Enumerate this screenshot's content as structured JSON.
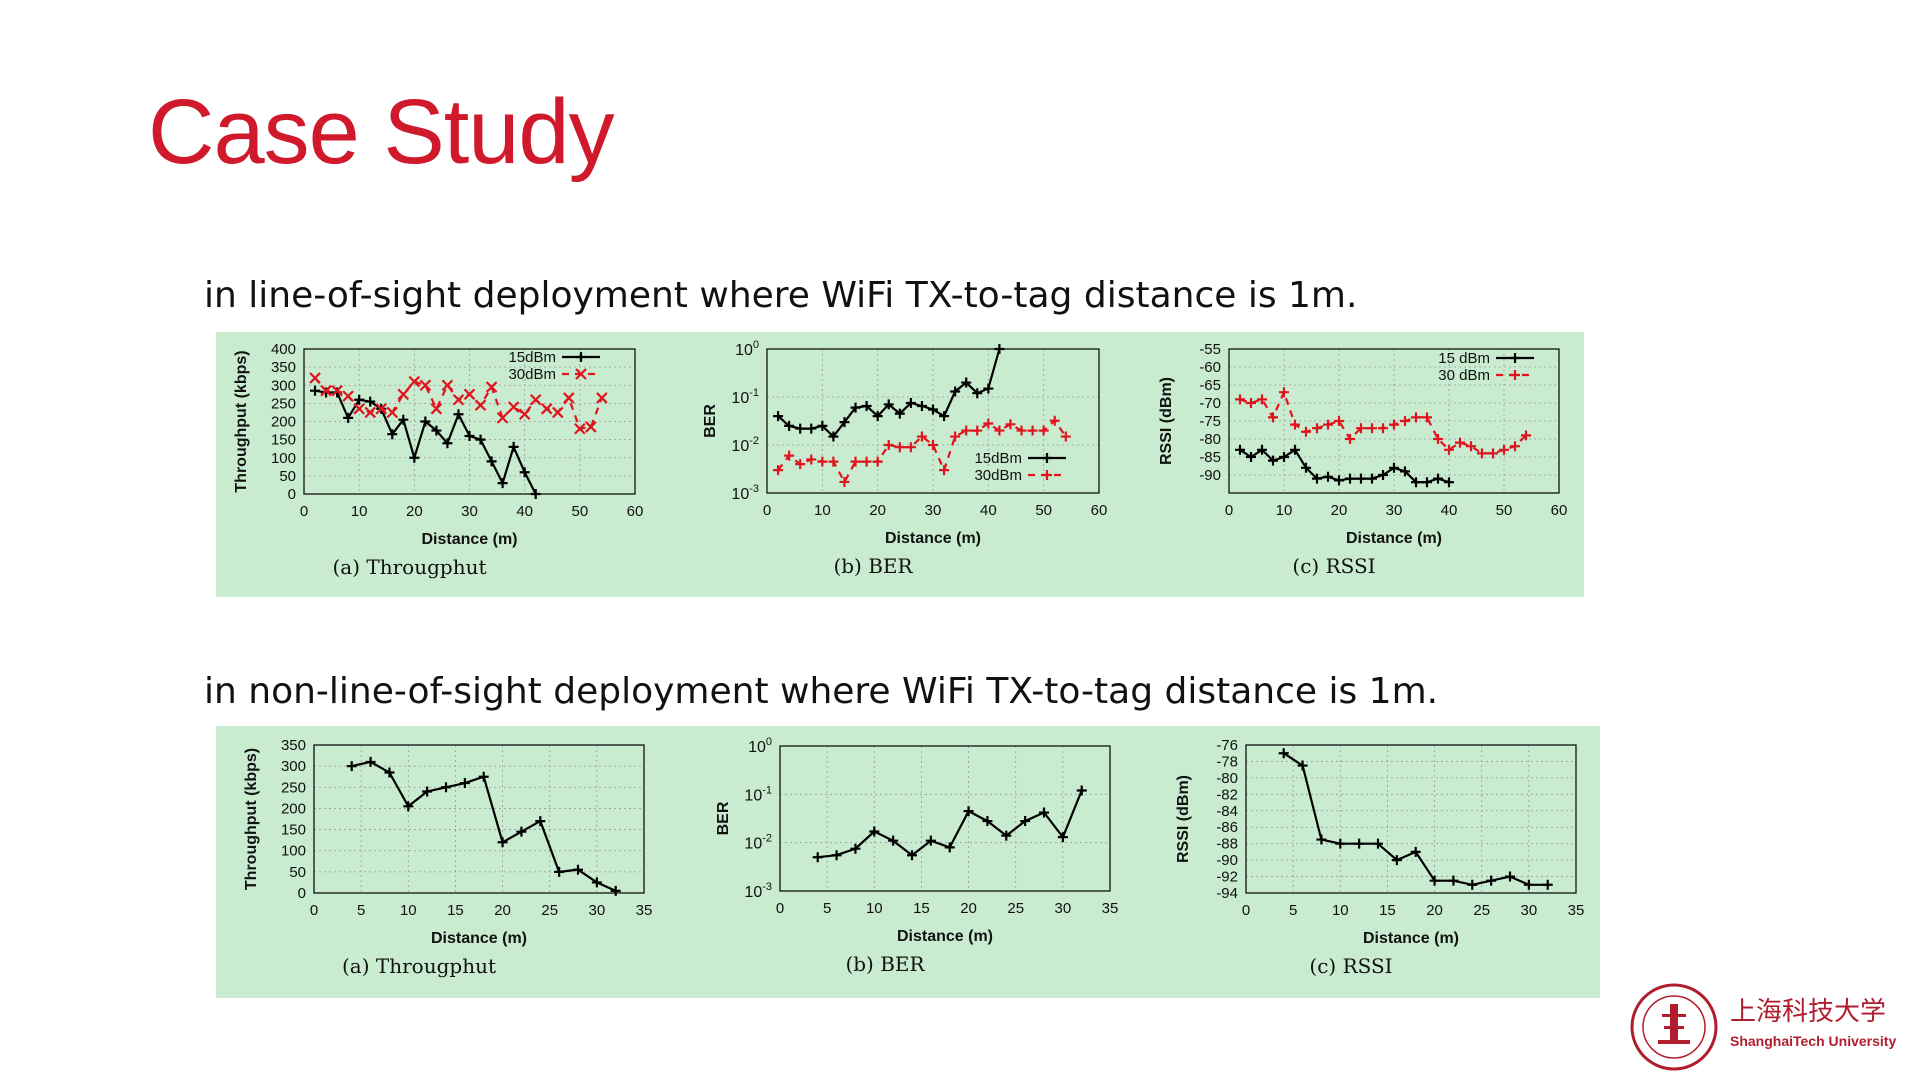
{
  "slide": {
    "title": "Case Study",
    "caption_los": "in line-of-sight deployment where WiFi TX-to-tag distance is 1m.",
    "caption_nlos": "in non-line-of-sight deployment where WiFi TX-to-tag distance is 1m."
  },
  "logo": {
    "cn": "上海科技大学",
    "en": "ShanghaiTech University"
  },
  "colors": {
    "title": "#d0192b",
    "panel": "#c9ecd0",
    "s15": "#000000",
    "s30": "#e0141e"
  },
  "chart_data": [
    {
      "type": "line",
      "subcaption": "(a) Througphut",
      "xlabel": "Distance (m)",
      "ylabel": "Throughput (kbps)",
      "xlim": [
        0,
        60
      ],
      "ylim": [
        0,
        400
      ],
      "xticks": [
        0,
        10,
        20,
        30,
        40,
        50,
        60
      ],
      "yticks": [
        0,
        50,
        100,
        150,
        200,
        250,
        300,
        350,
        400
      ],
      "legend": "top-right",
      "series": [
        {
          "name": "15dBm",
          "marker": "plus",
          "dash": false,
          "x": [
            2,
            4,
            6,
            8,
            10,
            12,
            14,
            16,
            18,
            20,
            22,
            24,
            26,
            28,
            30,
            32,
            34,
            36,
            38,
            40,
            42
          ],
          "y": [
            285,
            280,
            280,
            210,
            260,
            255,
            235,
            165,
            205,
            100,
            200,
            175,
            140,
            220,
            160,
            150,
            90,
            30,
            130,
            60,
            0
          ]
        },
        {
          "name": "30dBm",
          "marker": "x",
          "dash": true,
          "x": [
            2,
            4,
            6,
            8,
            10,
            12,
            14,
            16,
            18,
            20,
            22,
            24,
            26,
            28,
            30,
            32,
            34,
            36,
            38,
            40,
            42,
            44,
            46,
            48,
            50,
            52,
            54
          ],
          "y": [
            320,
            285,
            285,
            270,
            235,
            225,
            235,
            225,
            275,
            310,
            300,
            235,
            300,
            260,
            275,
            245,
            295,
            210,
            240,
            220,
            260,
            235,
            225,
            265,
            180,
            185,
            265
          ]
        }
      ]
    },
    {
      "type": "line",
      "subcaption": "(b) BER",
      "yscale": "log",
      "xlabel": "Distance (m)",
      "ylabel": "BER",
      "xlim": [
        0,
        60
      ],
      "ylim": [
        0.001,
        1
      ],
      "xticks": [
        0,
        10,
        20,
        30,
        40,
        50,
        60
      ],
      "ytick_exponents": [
        -3,
        -2,
        -1,
        0
      ],
      "legend": "bottom-right",
      "series": [
        {
          "name": "15dBm",
          "marker": "plus",
          "dash": false,
          "x": [
            2,
            4,
            6,
            8,
            10,
            12,
            14,
            16,
            18,
            20,
            22,
            24,
            26,
            28,
            30,
            32,
            34,
            36,
            38,
            40,
            42
          ],
          "y": [
            0.04,
            0.025,
            0.022,
            0.022,
            0.025,
            0.015,
            0.03,
            0.06,
            0.065,
            0.04,
            0.07,
            0.045,
            0.075,
            0.065,
            0.055,
            0.04,
            0.13,
            0.2,
            0.12,
            0.15,
            1.0
          ]
        },
        {
          "name": "30dBm",
          "marker": "plus",
          "dash": true,
          "x": [
            2,
            4,
            6,
            8,
            10,
            12,
            14,
            16,
            18,
            20,
            22,
            24,
            26,
            28,
            30,
            32,
            34,
            36,
            38,
            40,
            42,
            44,
            46,
            48,
            50,
            52,
            54
          ],
          "y": [
            0.003,
            0.006,
            0.004,
            0.005,
            0.0045,
            0.0045,
            0.0017,
            0.0045,
            0.0045,
            0.0045,
            0.01,
            0.009,
            0.009,
            0.015,
            0.01,
            0.003,
            0.015,
            0.02,
            0.02,
            0.028,
            0.02,
            0.027,
            0.02,
            0.02,
            0.02,
            0.032,
            0.015
          ]
        }
      ]
    },
    {
      "type": "line",
      "subcaption": "(c) RSSI",
      "xlabel": "Distance (m)",
      "ylabel": "RSSI (dBm)",
      "xlim": [
        0,
        60
      ],
      "ylim": [
        -95,
        -55
      ],
      "xticks": [
        0,
        10,
        20,
        30,
        40,
        50,
        60
      ],
      "yticks": [
        -90,
        -85,
        -80,
        -75,
        -70,
        -65,
        -60,
        -55
      ],
      "legend": "top-right",
      "series": [
        {
          "name": "15 dBm",
          "marker": "plus",
          "dash": false,
          "x": [
            2,
            4,
            6,
            8,
            10,
            12,
            14,
            16,
            18,
            20,
            22,
            24,
            26,
            28,
            30,
            32,
            34,
            36,
            38,
            40
          ],
          "y": [
            -83,
            -85,
            -83,
            -86,
            -85,
            -83,
            -88,
            -91,
            -90.5,
            -91.5,
            -91,
            -91,
            -91,
            -90,
            -88,
            -89,
            -92,
            -92,
            -91,
            -92
          ]
        },
        {
          "name": "30 dBm",
          "marker": "plus",
          "dash": true,
          "x": [
            2,
            4,
            6,
            8,
            10,
            12,
            14,
            16,
            18,
            20,
            22,
            24,
            26,
            28,
            30,
            32,
            34,
            36,
            38,
            40,
            42,
            44,
            46,
            48,
            50,
            52,
            54
          ],
          "y": [
            -69,
            -70,
            -69,
            -74,
            -67,
            -76,
            -78,
            -77,
            -76,
            -75,
            -80,
            -77,
            -77,
            -77,
            -76,
            -75,
            -74,
            -74,
            -80,
            -83,
            -81,
            -82,
            -84,
            -84,
            -83,
            -82,
            -79
          ]
        }
      ]
    },
    {
      "type": "line",
      "subcaption": "(a) Througphut",
      "xlabel": "Distance (m)",
      "ylabel": "Throughput (kbps)",
      "xlim": [
        0,
        35
      ],
      "ylim": [
        0,
        350
      ],
      "xticks": [
        0,
        5,
        10,
        15,
        20,
        25,
        30,
        35
      ],
      "yticks": [
        0,
        50,
        100,
        150,
        200,
        250,
        300,
        350
      ],
      "series": [
        {
          "marker": "plus",
          "dash": false,
          "x": [
            4,
            6,
            8,
            10,
            12,
            14,
            16,
            18,
            20,
            22,
            24,
            26,
            28,
            30,
            32
          ],
          "y": [
            300,
            310,
            285,
            205,
            240,
            250,
            260,
            275,
            120,
            145,
            170,
            50,
            55,
            25,
            5
          ]
        }
      ]
    },
    {
      "type": "line",
      "subcaption": "(b) BER",
      "yscale": "log",
      "xlabel": "Distance (m)",
      "ylabel": "BER",
      "xlim": [
        0,
        35
      ],
      "ylim": [
        0.001,
        1
      ],
      "xticks": [
        0,
        5,
        10,
        15,
        20,
        25,
        30,
        35
      ],
      "ytick_exponents": [
        -3,
        -2,
        -1,
        0
      ],
      "series": [
        {
          "marker": "plus",
          "dash": false,
          "x": [
            4,
            6,
            8,
            10,
            12,
            14,
            16,
            18,
            20,
            22,
            24,
            26,
            28,
            30,
            32
          ],
          "y": [
            0.005,
            0.0055,
            0.0075,
            0.017,
            0.011,
            0.0055,
            0.011,
            0.008,
            0.045,
            0.028,
            0.014,
            0.028,
            0.042,
            0.013,
            0.12
          ]
        }
      ]
    },
    {
      "type": "line",
      "subcaption": "(c) RSSI",
      "xlabel": "Distance (m)",
      "ylabel": "RSSI (dBm)",
      "xlim": [
        0,
        35
      ],
      "ylim": [
        -94,
        -76
      ],
      "xticks": [
        0,
        5,
        10,
        15,
        20,
        25,
        30,
        35
      ],
      "yticks": [
        -94,
        -92,
        -90,
        -88,
        -86,
        -84,
        -82,
        -80,
        -78,
        -76
      ],
      "series": [
        {
          "marker": "plus",
          "dash": false,
          "x": [
            4,
            6,
            8,
            10,
            12,
            14,
            16,
            18,
            20,
            22,
            24,
            26,
            28,
            30,
            32
          ],
          "y": [
            -77,
            -78.5,
            -87.5,
            -88,
            -88,
            -88,
            -90,
            -89,
            -92.5,
            -92.5,
            -93,
            -92.5,
            -92,
            -93,
            -93
          ]
        }
      ]
    }
  ]
}
